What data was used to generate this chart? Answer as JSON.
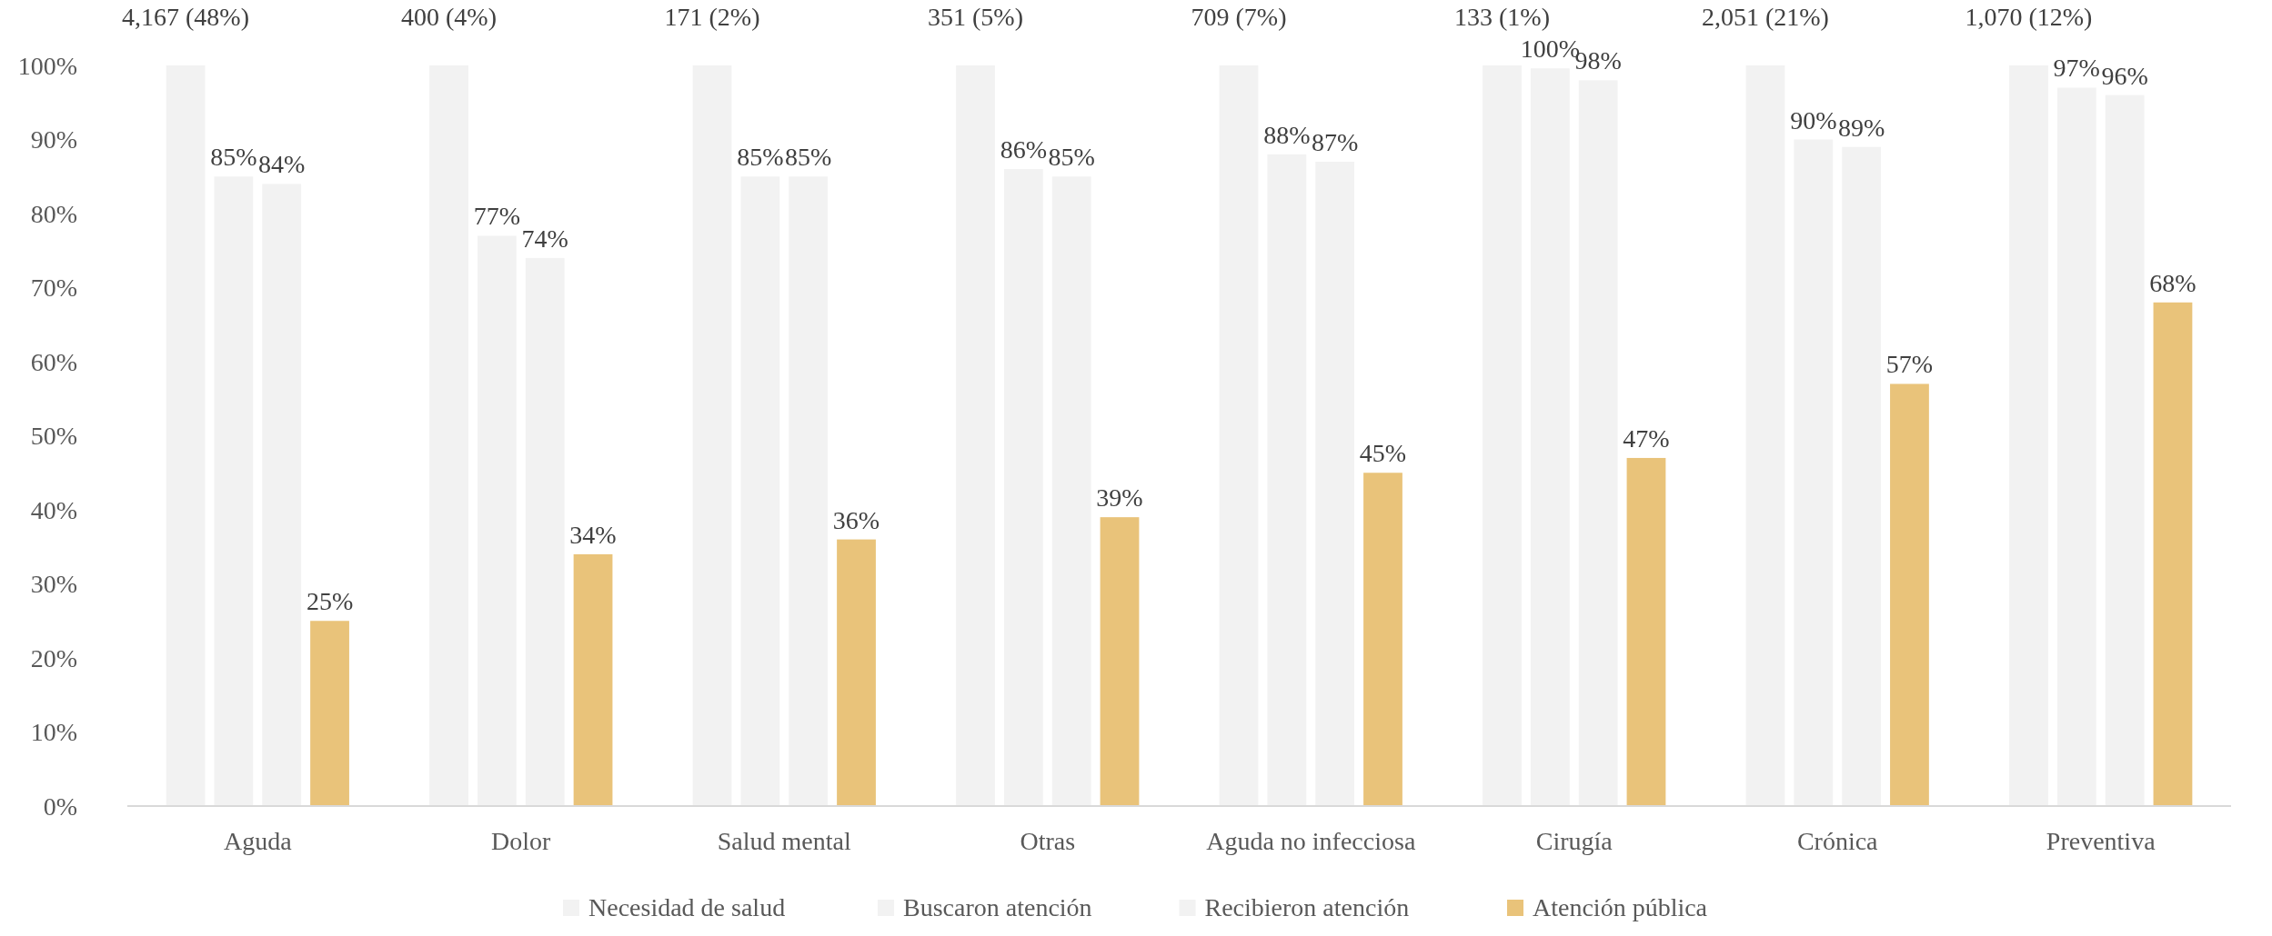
{
  "chart_data": {
    "type": "bar",
    "categories": [
      "Aguda",
      "Dolor",
      "Salud mental",
      "Otras",
      "Aguda no infecciosa",
      "Cirugía",
      "Crónica",
      "Preventiva"
    ],
    "series": [
      {
        "name": "Necesidad de salud",
        "color": "#f2f2f2",
        "values": [
          100,
          100,
          100,
          100,
          100,
          100,
          100,
          100
        ]
      },
      {
        "name": "Buscaron atención",
        "color": "#f2f2f2",
        "values": [
          85,
          77,
          85,
          86,
          88,
          99.6,
          90,
          97
        ],
        "value_labels": [
          "85%",
          "77%",
          "85%",
          "86%",
          "88%",
          "100%",
          "90%",
          "97%"
        ]
      },
      {
        "name": "Recibieron atención",
        "color": "#f2f2f2",
        "values": [
          84,
          74,
          85,
          85,
          87,
          98,
          89,
          96
        ],
        "value_labels": [
          "84%",
          "74%",
          "85%",
          "85%",
          "87%",
          "98%",
          "89%",
          "96%"
        ]
      },
      {
        "name": "Atención pública",
        "color": "#e9c37a",
        "values": [
          25,
          34,
          36,
          39,
          45,
          47,
          57,
          68
        ],
        "value_labels": [
          "25%",
          "34%",
          "36%",
          "39%",
          "45%",
          "47%",
          "57%",
          "68%"
        ]
      }
    ],
    "annotations": [
      "4,167 (48%)",
      "400 (4%)",
      "171 (2%)",
      "351 (5%)",
      "709 (7%)",
      "133 (1%)",
      "2,051 (21%)",
      "1,070 (12%)"
    ],
    "ylim": [
      0,
      100
    ],
    "yticks": [
      {
        "value": 0,
        "label": "0%"
      },
      {
        "value": 10,
        "label": "10%"
      },
      {
        "value": 20,
        "label": "20%"
      },
      {
        "value": 30,
        "label": "30%"
      },
      {
        "value": 40,
        "label": "40%"
      },
      {
        "value": 50,
        "label": "50%"
      },
      {
        "value": 60,
        "label": "60%"
      },
      {
        "value": 70,
        "label": "70%"
      },
      {
        "value": 80,
        "label": "80%"
      },
      {
        "value": 90,
        "label": "90%"
      },
      {
        "value": 100,
        "label": "100%"
      }
    ],
    "grid": false,
    "legend": "bottom"
  }
}
